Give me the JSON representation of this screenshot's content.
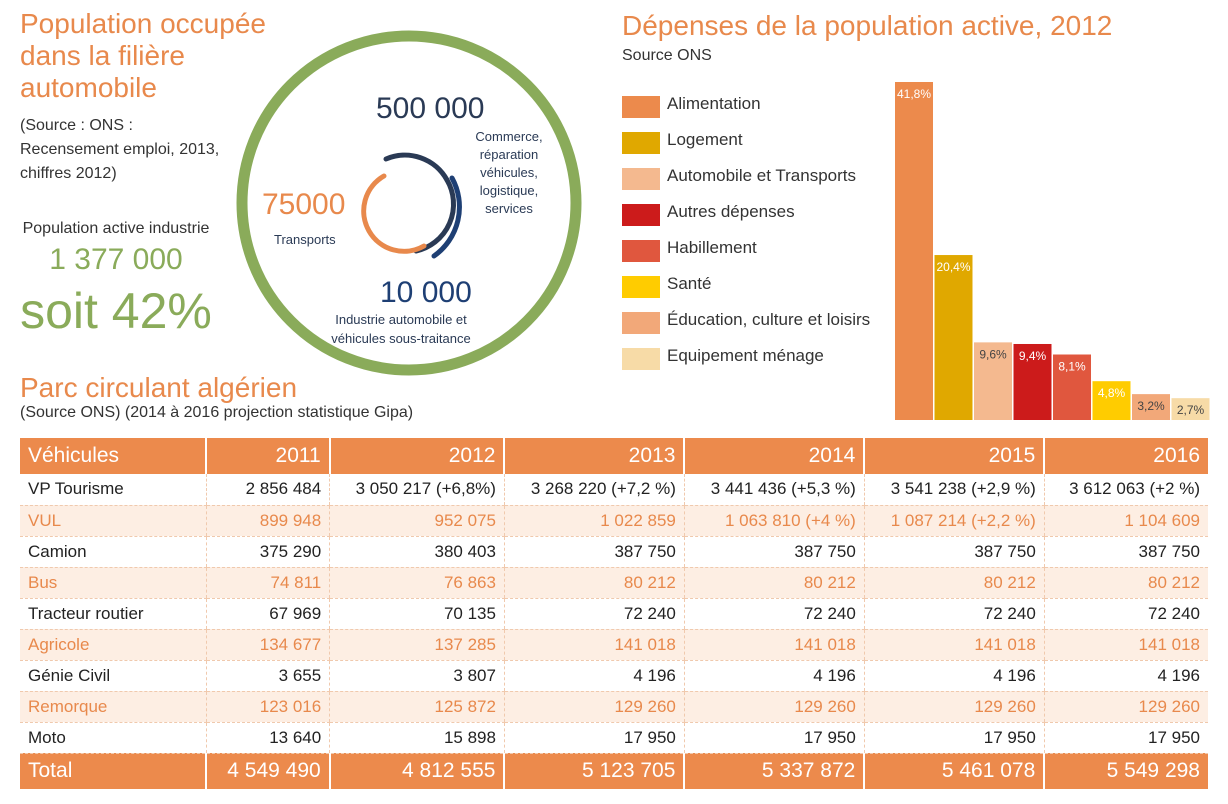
{
  "population": {
    "title": "Population occupée dans la filière automobile",
    "source": "(Source : ONS : Recensement emploi, 2013, chiffres 2012)",
    "active_label": "Population active industrie",
    "active_value": "1 377 000",
    "active_pct": "soit 42%",
    "commerce_value": "500 000",
    "commerce_label": "Commerce, réparation véhicules, logistique, services",
    "transports_value": "75000",
    "transports_label": "Transports",
    "industrie_value": "10 000",
    "industrie_label": "Industrie automobile et véhicules sous-traitance",
    "colors": {
      "ring": "#8aab5a",
      "commerce": "#2a3a55",
      "transports": "#e8894c",
      "industrie": "#1e3f74"
    }
  },
  "depenses": {
    "title": "Dépenses de la population active, 2012",
    "source": "Source ONS"
  },
  "chart_data": {
    "type": "bar",
    "title": "Dépenses de la population active, 2012",
    "categories": [
      "Alimentation",
      "Logement",
      "Automobile et Transports",
      "Autres dépenses",
      "Habillement",
      "Santé",
      "Éducation, culture et loisirs",
      "Equipement ménage"
    ],
    "values": [
      41.8,
      20.4,
      9.6,
      9.4,
      8.1,
      4.8,
      3.2,
      2.7
    ],
    "labels": [
      "41,8%",
      "20,4%",
      "9,6%",
      "9,4%",
      "8,1%",
      "4,8%",
      "3,2%",
      "2,7%"
    ],
    "colors": [
      "#ec8a4c",
      "#e0a800",
      "#f4b98f",
      "#cc1b1b",
      "#e0573e",
      "#ffcc00",
      "#f2a879",
      "#f7dba7"
    ],
    "ylim": [
      0,
      41.8
    ],
    "legend": "left"
  },
  "parc": {
    "title": "Parc circulant algérien",
    "source": "(Source ONS) (2014 à 2016 projection statistique Gipa)",
    "headers": [
      "Véhicules",
      "2011",
      "2012",
      "2013",
      "2014",
      "2015",
      "2016"
    ],
    "rows": [
      [
        "VP Tourisme",
        "2 856 484",
        "3 050 217 (+6,8%)",
        "3 268 220 (+7,2 %)",
        "3 441 436 (+5,3 %)",
        "3 541 238 (+2,9 %)",
        "3 612 063 (+2 %)"
      ],
      [
        "VUL",
        "899 948",
        "952 075",
        "1 022 859",
        "1 063 810 (+4 %)",
        "1 087 214 (+2,2 %)",
        "1 104 609"
      ],
      [
        "Camion",
        "375 290",
        "380 403",
        "387 750",
        "387 750",
        "387 750",
        "387 750"
      ],
      [
        "Bus",
        "74 811",
        "76 863",
        "80 212",
        "80 212",
        "80 212",
        "80 212"
      ],
      [
        "Tracteur routier",
        "67 969",
        "70 135",
        "72 240",
        "72 240",
        "72 240",
        "72 240"
      ],
      [
        "Agricole",
        "134 677",
        "137 285",
        "141 018",
        "141 018",
        "141 018",
        "141 018"
      ],
      [
        "Génie Civil",
        "3 655",
        "3 807",
        "4 196",
        "4 196",
        "4 196",
        "4 196"
      ],
      [
        "Remorque",
        "123 016",
        "125 872",
        "129 260",
        "129 260",
        "129 260",
        "129 260"
      ],
      [
        "Moto",
        "13 640",
        "15 898",
        "17 950",
        "17 950",
        "17 950",
        "17 950"
      ]
    ],
    "total": [
      "Total",
      "4 549 490",
      "4 812 555",
      "5 123 705",
      "5 337 872",
      "5 461 078",
      "5 549 298"
    ]
  }
}
